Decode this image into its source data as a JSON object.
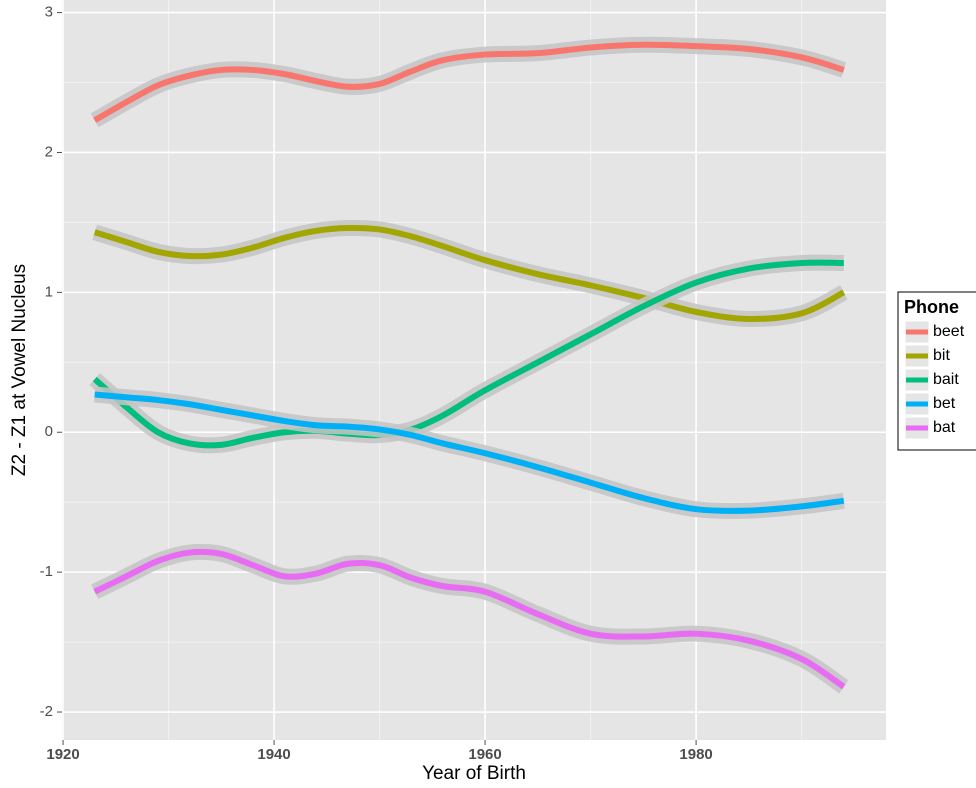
{
  "chart_data": {
    "type": "line",
    "x_label": "Year of Birth",
    "y_label": "Z2 - Z1 at Vowel Nucleus",
    "legend_title": "Phone",
    "legend_position": "right",
    "grid": true,
    "x": [
      1923,
      1926,
      1929,
      1932,
      1935,
      1938,
      1941,
      1944,
      1947,
      1950,
      1953,
      1956,
      1960,
      1965,
      1970,
      1975,
      1980,
      1985,
      1990,
      1994
    ],
    "series": [
      {
        "name": "beet",
        "color": "#F8766D",
        "values": [
          2.23,
          2.36,
          2.48,
          2.55,
          2.59,
          2.59,
          2.56,
          2.51,
          2.47,
          2.49,
          2.58,
          2.66,
          2.7,
          2.71,
          2.75,
          2.77,
          2.76,
          2.74,
          2.68,
          2.59
        ]
      },
      {
        "name": "bit",
        "color": "#A3A500",
        "values": [
          1.43,
          1.36,
          1.29,
          1.26,
          1.27,
          1.32,
          1.39,
          1.44,
          1.46,
          1.45,
          1.4,
          1.33,
          1.23,
          1.13,
          1.05,
          0.96,
          0.86,
          0.81,
          0.85,
          1.0
        ]
      },
      {
        "name": "bait",
        "color": "#00BF7D",
        "values": [
          0.38,
          0.18,
          0.0,
          -0.08,
          -0.09,
          -0.04,
          0.0,
          0.01,
          -0.01,
          -0.02,
          0.02,
          0.12,
          0.3,
          0.5,
          0.7,
          0.9,
          1.07,
          1.17,
          1.21,
          1.21
        ]
      },
      {
        "name": "bet",
        "color": "#00B0F6",
        "values": [
          0.27,
          0.25,
          0.23,
          0.2,
          0.16,
          0.12,
          0.08,
          0.05,
          0.04,
          0.02,
          -0.02,
          -0.08,
          -0.15,
          -0.25,
          -0.36,
          -0.47,
          -0.55,
          -0.56,
          -0.53,
          -0.49
        ]
      },
      {
        "name": "bat",
        "color": "#E76BF3",
        "values": [
          -1.14,
          -1.03,
          -0.92,
          -0.86,
          -0.87,
          -0.95,
          -1.03,
          -1.01,
          -0.94,
          -0.95,
          -1.04,
          -1.1,
          -1.14,
          -1.3,
          -1.44,
          -1.46,
          -1.44,
          -1.49,
          -1.62,
          -1.82
        ]
      }
    ],
    "xlim": [
      1919.9,
      1998
    ],
    "xticks": [
      1920,
      1940,
      1960,
      1980
    ],
    "ylim": [
      -2.2,
      3.09
    ],
    "yticks": [
      -2,
      -1,
      0,
      1,
      2,
      3
    ]
  }
}
